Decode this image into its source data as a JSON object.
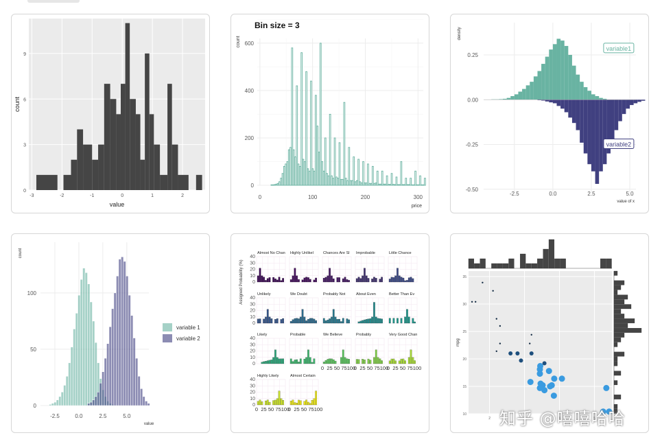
{
  "watermark": "知乎 @嘻嘻哈哈",
  "colors": {
    "ggbg": "#ebebeb",
    "bar": "#454545",
    "teal": "#69b3a2",
    "navy": "#404080",
    "grid": "#ffffff"
  },
  "chart_data": [
    {
      "id": "hist1",
      "type": "histogram",
      "xlabel": "value",
      "ylabel": "count",
      "xticks": [
        "-3",
        "-2",
        "-1",
        "0",
        "1",
        "2"
      ],
      "yticks": [
        "0",
        "3",
        "6",
        "9"
      ],
      "xlim": [
        -3.1,
        2.75
      ],
      "ylim": [
        0,
        11.3
      ],
      "bins": [
        {
          "x0": -2.85,
          "x1": -2.15,
          "count": 1
        },
        {
          "x0": -1.95,
          "x1": -1.7,
          "count": 1
        },
        {
          "x0": -1.7,
          "x1": -1.5,
          "count": 2
        },
        {
          "x0": -1.5,
          "x1": -1.3,
          "count": 4
        },
        {
          "x0": -1.3,
          "x1": -1.0,
          "count": 3
        },
        {
          "x0": -1.0,
          "x1": -0.8,
          "count": 2
        },
        {
          "x0": -0.8,
          "x1": -0.6,
          "count": 3
        },
        {
          "x0": -0.6,
          "x1": -0.4,
          "count": 7
        },
        {
          "x0": -0.4,
          "x1": -0.2,
          "count": 6
        },
        {
          "x0": -0.2,
          "x1": -0.05,
          "count": 5
        },
        {
          "x0": -0.05,
          "x1": 0.1,
          "count": 7
        },
        {
          "x0": 0.1,
          "x1": 0.25,
          "count": 11
        },
        {
          "x0": 0.25,
          "x1": 0.45,
          "count": 6
        },
        {
          "x0": 0.45,
          "x1": 0.6,
          "count": 5
        },
        {
          "x0": 0.6,
          "x1": 0.75,
          "count": 2
        },
        {
          "x0": 0.75,
          "x1": 0.9,
          "count": 9
        },
        {
          "x0": 0.9,
          "x1": 1.05,
          "count": 5
        },
        {
          "x0": 1.05,
          "x1": 1.25,
          "count": 3
        },
        {
          "x0": 1.25,
          "x1": 1.5,
          "count": 1
        },
        {
          "x0": 1.5,
          "x1": 1.65,
          "count": 7
        },
        {
          "x0": 1.65,
          "x1": 1.85,
          "count": 3
        },
        {
          "x0": 1.85,
          "x1": 2.2,
          "count": 1
        },
        {
          "x0": 2.45,
          "x1": 2.65,
          "count": 1
        }
      ]
    },
    {
      "id": "hist2",
      "type": "histogram",
      "title": "Bin size = 3",
      "xlabel": "price",
      "ylabel": "count",
      "xticks": [
        "0",
        "100",
        "200",
        "300"
      ],
      "yticks": [
        "0",
        "200",
        "400",
        "600"
      ],
      "xlim": [
        -5,
        310
      ],
      "ylim": [
        0,
        620
      ],
      "bin_width": 3,
      "heights": [
        0,
        0,
        0,
        0,
        0,
        0,
        0,
        2,
        2,
        3,
        5,
        8,
        15,
        30,
        50,
        80,
        90,
        100,
        150,
        160,
        580,
        150,
        120,
        420,
        90,
        80,
        560,
        110,
        100,
        480,
        70,
        60,
        440,
        70,
        60,
        380,
        250,
        140,
        600,
        100,
        60,
        200,
        50,
        40,
        300,
        40,
        30,
        200,
        35,
        30,
        180,
        25,
        25,
        350,
        30,
        20,
        160,
        20,
        20,
        120,
        15,
        20,
        110,
        15,
        10,
        100,
        10,
        10,
        90,
        8,
        8,
        80,
        8,
        10,
        60,
        5,
        5,
        60,
        5,
        5,
        40,
        4,
        4,
        50,
        4,
        3,
        35,
        3,
        3,
        100,
        3,
        3,
        30,
        3,
        3,
        30,
        2,
        2,
        60,
        2,
        2,
        40,
        2,
        2,
        30
      ]
    },
    {
      "id": "mirror",
      "type": "mirrored-histogram",
      "xlabel": "value of x",
      "ylabel": "density",
      "xticks": [
        "-2.5",
        "0.0",
        "2.5",
        "5.0"
      ],
      "yticks": [
        "0.25",
        "0.00",
        "-0.25",
        "-0.50"
      ],
      "xlim": [
        -4.5,
        5.4
      ],
      "ylim": [
        -0.52,
        0.43
      ],
      "series": [
        {
          "name": "variable1",
          "color": "#69b3a2",
          "x0": -4.0,
          "bin": 0.25,
          "values": [
            0.002,
            0.002,
            0.003,
            0.005,
            0.01,
            0.02,
            0.03,
            0.045,
            0.06,
            0.08,
            0.1,
            0.13,
            0.16,
            0.2,
            0.24,
            0.28,
            0.31,
            0.34,
            0.33,
            0.3,
            0.25,
            0.19,
            0.14,
            0.1,
            0.07,
            0.05,
            0.03,
            0.02,
            0.01,
            0.005
          ]
        },
        {
          "name": "variable2",
          "color": "#404080",
          "x0": -1.0,
          "bin": 0.25,
          "values": [
            0.003,
            0.005,
            0.01,
            0.015,
            0.02,
            0.035,
            0.05,
            0.07,
            0.1,
            0.13,
            0.17,
            0.24,
            0.3,
            0.36,
            0.4,
            0.47,
            0.4,
            0.36,
            0.3,
            0.24,
            0.17,
            0.12,
            0.08,
            0.05,
            0.03,
            0.02,
            0.012,
            0.006
          ]
        }
      ]
    },
    {
      "id": "overlap",
      "type": "overlapping-histogram",
      "xlabel": "value",
      "ylabel": "count",
      "xticks": [
        "-2.5",
        "0.0",
        "2.5",
        "5.0"
      ],
      "yticks": [
        "0",
        "50",
        "100"
      ],
      "xlim": [
        -4,
        7.3
      ],
      "ylim": [
        0,
        145
      ],
      "legend": [
        "variable 1",
        "variable 2"
      ],
      "series": [
        {
          "name": "variable 1",
          "color": "#69b3a2",
          "x0": -3.1,
          "bin": 0.25,
          "values": [
            1,
            2,
            3,
            5,
            8,
            12,
            18,
            26,
            38,
            52,
            68,
            82,
            98,
            112,
            122,
            118,
            108,
            92,
            75,
            56,
            38,
            24,
            14,
            8,
            4,
            2,
            1
          ]
        },
        {
          "name": "variable 2",
          "color": "#404080",
          "x0": 0.9,
          "bin": 0.25,
          "values": [
            2,
            3,
            5,
            8,
            12,
            20,
            30,
            42,
            55,
            70,
            86,
            100,
            115,
            130,
            132,
            128,
            115,
            98,
            80,
            60,
            42,
            26,
            15,
            8,
            4,
            2
          ]
        }
      ]
    },
    {
      "id": "facets",
      "type": "faceted-histogram",
      "ylabel": "Assigned Probability (%)",
      "panels": [
        "Almost No Chance",
        "Highly Unlikely",
        "Chances Are Slight",
        "Improbable",
        "Little Chance",
        "Unlikely",
        "We Doubt",
        "Probably Not",
        "About Even",
        "Better Than Even",
        "Likely",
        "Probable",
        "We Believe",
        "Probably",
        "Very Good Chance",
        "Highly Likely",
        "Almost Certainly"
      ],
      "yticks": [
        "0",
        "10",
        "20",
        "30",
        "40"
      ],
      "xticks": [
        "0",
        "25",
        "50",
        "75",
        "100"
      ],
      "colors": [
        "#3f0f57",
        "#45125d",
        "#461c64",
        "#423470",
        "#3d4a86",
        "#37568a",
        "#2e6a8c",
        "#2a788e",
        "#248a8b",
        "#20958a",
        "#2da57a",
        "#3fb46e",
        "#5cc25f",
        "#82cd4a",
        "#a7d838",
        "#c9e02b",
        "#e8e31d"
      ]
    },
    {
      "id": "marginal",
      "type": "scatter-with-marginal-histograms",
      "ylabel": "mpg",
      "yticks": [
        "10",
        "15",
        "20",
        "25",
        "30",
        "35"
      ],
      "xticks": [
        "2",
        "3",
        "4",
        "5"
      ],
      "xlim": [
        1.4,
        5.5
      ],
      "ylim": [
        10,
        36
      ],
      "points": [
        {
          "x": 1.5,
          "y": 30.4,
          "size": 1
        },
        {
          "x": 1.6,
          "y": 30.4,
          "size": 1
        },
        {
          "x": 1.8,
          "y": 33.9,
          "size": 1
        },
        {
          "x": 2.1,
          "y": 32.4,
          "size": 1
        },
        {
          "x": 2.2,
          "y": 27.3,
          "size": 1
        },
        {
          "x": 2.3,
          "y": 26.0,
          "size": 1
        },
        {
          "x": 2.2,
          "y": 21.4,
          "size": 1
        },
        {
          "x": 2.3,
          "y": 22.8,
          "size": 1
        },
        {
          "x": 2.6,
          "y": 21.0,
          "size": 2
        },
        {
          "x": 2.8,
          "y": 21.0,
          "size": 2
        },
        {
          "x": 2.9,
          "y": 19.7,
          "size": 2
        },
        {
          "x": 3.15,
          "y": 22.8,
          "size": 1
        },
        {
          "x": 3.2,
          "y": 24.4,
          "size": 1
        },
        {
          "x": 3.2,
          "y": 21.0,
          "size": 2
        },
        {
          "x": 3.45,
          "y": 18.7,
          "size": 3
        },
        {
          "x": 3.44,
          "y": 18.1,
          "size": 3
        },
        {
          "x": 3.44,
          "y": 17.3,
          "size": 3
        },
        {
          "x": 3.57,
          "y": 19.2,
          "size": 2
        },
        {
          "x": 3.46,
          "y": 15.5,
          "size": 3
        },
        {
          "x": 3.52,
          "y": 15.2,
          "size": 3
        },
        {
          "x": 3.7,
          "y": 17.8,
          "size": 3
        },
        {
          "x": 3.73,
          "y": 15.0,
          "size": 3
        },
        {
          "x": 3.57,
          "y": 14.3,
          "size": 3
        },
        {
          "x": 3.78,
          "y": 15.2,
          "size": 3
        },
        {
          "x": 3.84,
          "y": 13.3,
          "size": 3
        },
        {
          "x": 3.85,
          "y": 16.4,
          "size": 3
        },
        {
          "x": 3.17,
          "y": 15.8,
          "size": 3
        },
        {
          "x": 3.44,
          "y": 14.7,
          "size": 3
        },
        {
          "x": 5.25,
          "y": 10.4,
          "size": 3
        },
        {
          "x": 5.42,
          "y": 10.4,
          "size": 3
        },
        {
          "x": 5.34,
          "y": 14.7,
          "size": 3
        },
        {
          "x": 4.07,
          "y": 16.4,
          "size": 3
        }
      ],
      "top_hist": [
        2,
        1,
        2,
        0,
        1,
        1,
        1,
        2,
        0,
        3,
        1,
        1,
        2,
        4,
        6,
        2,
        2,
        0,
        0,
        0,
        0,
        0,
        0,
        2,
        2
      ],
      "right_hist": [
        1,
        0,
        3,
        2,
        1,
        4,
        3,
        5,
        2,
        3,
        6,
        4,
        8,
        3,
        2,
        1,
        0,
        3,
        1,
        1,
        0,
        2,
        0,
        1,
        0,
        0,
        2,
        0,
        1,
        1
      ]
    }
  ]
}
